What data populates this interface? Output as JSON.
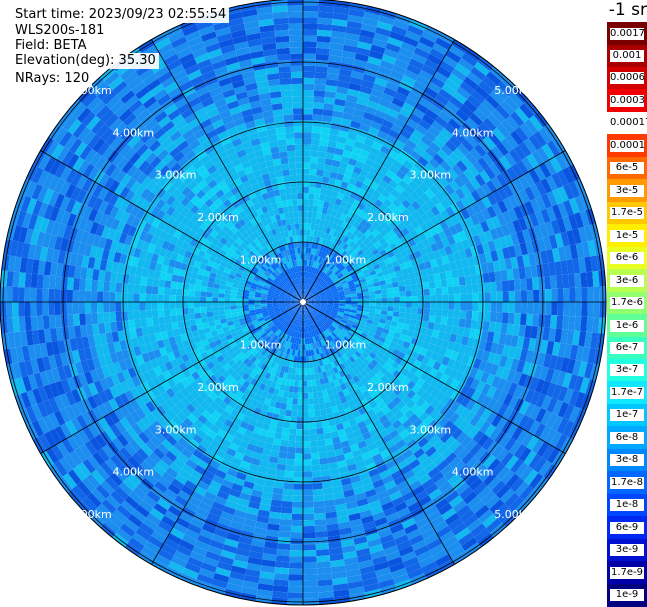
{
  "info": {
    "start_time": "Start time: 2023/09/23 02:55:54",
    "instrument": "WLS200s-181",
    "field": "Field: BETA",
    "elevation": "Elevation(deg): 35.30",
    "nrays": "NRays: 120"
  },
  "colorbar": {
    "title": "-1 sr",
    "levels": [
      {
        "label": "0.0017",
        "color": "#7a0000"
      },
      {
        "label": "0.001",
        "color": "#a80000"
      },
      {
        "label": "0.0006",
        "color": "#d20000"
      },
      {
        "label": "0.0003",
        "color": "#f00000"
      },
      {
        "label": "0.00017",
        "color": "#ffffff"
      },
      {
        "label": "0.0001",
        "color": "#ff3a00"
      },
      {
        "label": "6e-5",
        "color": "#ff6a00"
      },
      {
        "label": "3e-5",
        "color": "#ff9a00"
      },
      {
        "label": "1.7e-5",
        "color": "#ffc800"
      },
      {
        "label": "1e-5",
        "color": "#ffee00"
      },
      {
        "label": "6e-6",
        "color": "#e8ff20"
      },
      {
        "label": "3e-6",
        "color": "#b8ff50"
      },
      {
        "label": "1.7e-6",
        "color": "#90ff70"
      },
      {
        "label": "1e-6",
        "color": "#60ff98"
      },
      {
        "label": "6e-7",
        "color": "#38ffc0"
      },
      {
        "label": "3e-7",
        "color": "#20ffe0"
      },
      {
        "label": "1.7e-7",
        "color": "#10e8ff"
      },
      {
        "label": "1e-7",
        "color": "#00c8ff"
      },
      {
        "label": "6e-8",
        "color": "#00a8ff"
      },
      {
        "label": "3e-8",
        "color": "#0088ff"
      },
      {
        "label": "1.7e-8",
        "color": "#0068ff"
      },
      {
        "label": "1e-8",
        "color": "#0048ff"
      },
      {
        "label": "6e-9",
        "color": "#0028f0"
      },
      {
        "label": "3e-9",
        "color": "#0010d0"
      },
      {
        "label": "1.7e-9",
        "color": "#0000a8"
      },
      {
        "label": "1e-9",
        "color": "#000080"
      }
    ]
  },
  "range_rings": [
    "1.00km",
    "2.00km",
    "3.00km",
    "4.00km",
    "5.00km"
  ],
  "palette": {
    "center": "#0a6cf5",
    "mid": "#12b8f0",
    "mid_alt": "#0fd2f5",
    "outer": "#1c8ef0",
    "outer_alt": "#1266e8",
    "outer_dark": "#0a55e0",
    "grid": "#000000"
  }
}
